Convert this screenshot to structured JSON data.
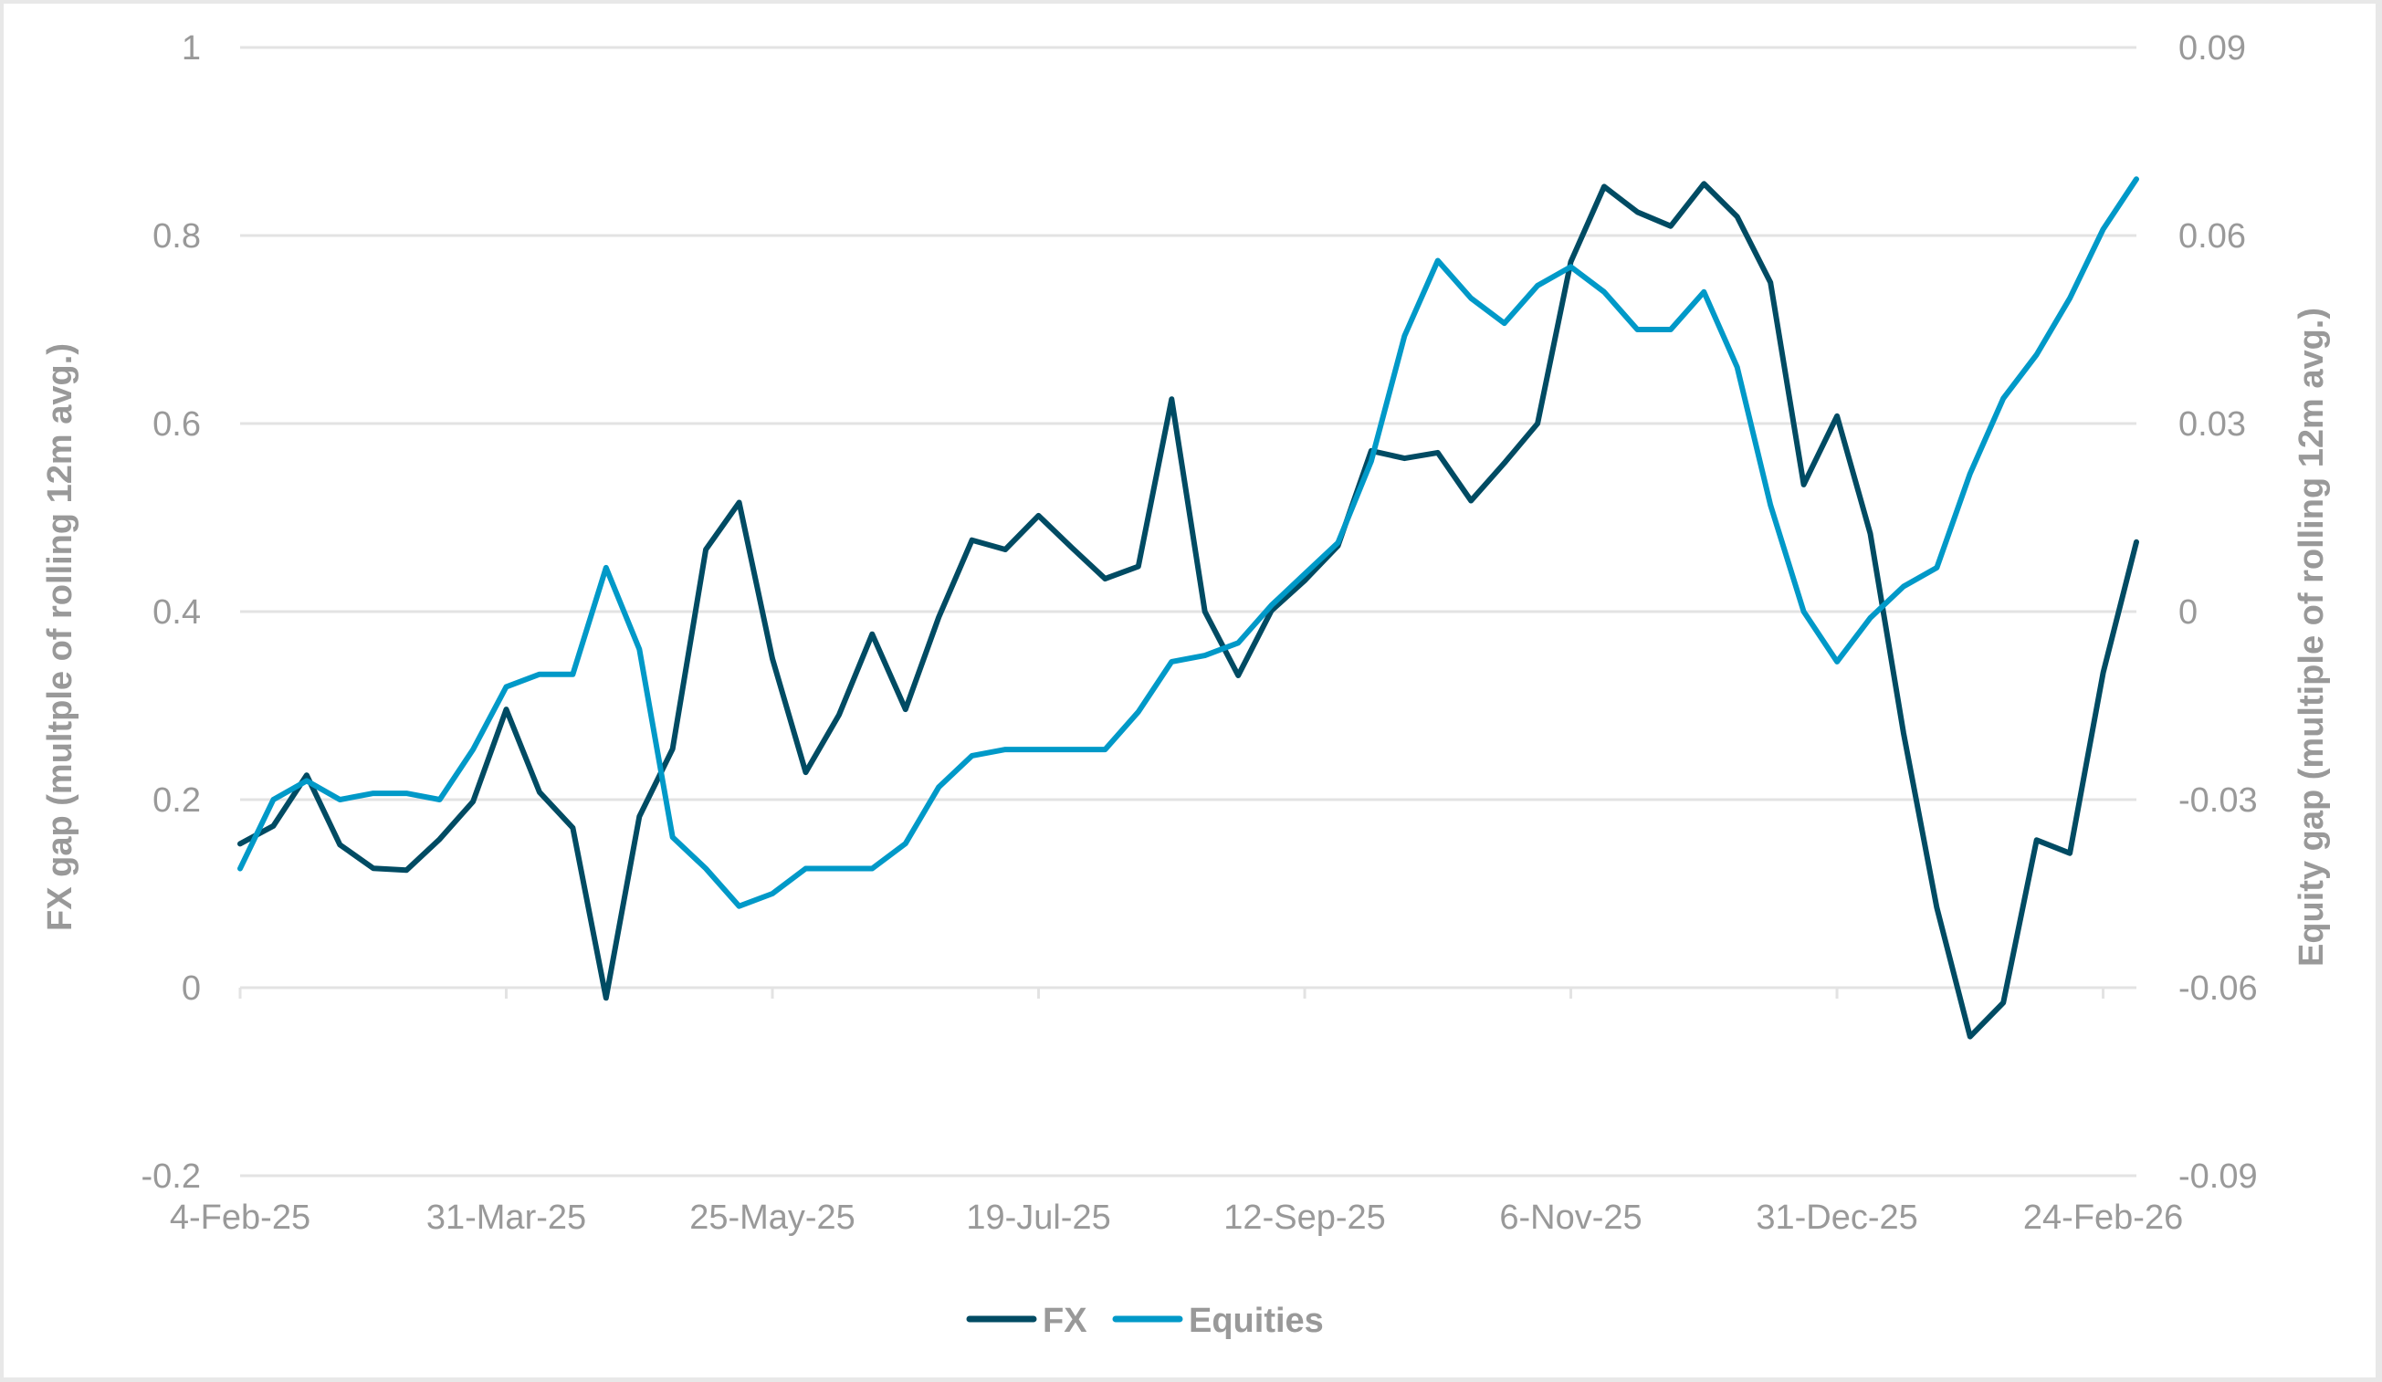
{
  "chart_data": {
    "type": "line",
    "title": "",
    "xlabel": "",
    "ylabel": "FX gap (multple of rolling 12m avg.)",
    "y2label": "Equity gap (multiple of rolling 12m avg.)",
    "ylim": [
      -0.2,
      1
    ],
    "y2lim": [
      -0.09,
      0.09
    ],
    "yticks": [
      "1",
      "0.8",
      "0.6",
      "0.4",
      "0.2",
      "0",
      "-0.2"
    ],
    "y2ticks": [
      "0.09",
      "0.06",
      "0.03",
      "0",
      "-0.03",
      "-0.06",
      "-0.09"
    ],
    "xticks": [
      "4-Feb-25",
      "31-Mar-25",
      "25-May-25",
      "19-Jul-25",
      "12-Sep-25",
      "6-Nov-25",
      "31-Dec-25",
      "24-Feb-26"
    ],
    "grid": true,
    "legend_position": "bottom",
    "series": [
      {
        "name": "FX",
        "axis": "left",
        "color": "#004b63",
        "values": [
          0.153,
          0.172,
          0.226,
          0.152,
          0.127,
          0.125,
          0.158,
          0.198,
          0.296,
          0.208,
          0.17,
          -0.011,
          0.182,
          0.254,
          0.466,
          0.516,
          0.35,
          0.229,
          0.29,
          0.376,
          0.296,
          0.394,
          0.476,
          0.466,
          0.502,
          0.468,
          0.435,
          0.448,
          0.626,
          0.4,
          0.332,
          0.401,
          0.433,
          0.47,
          0.571,
          0.563,
          0.569,
          0.518,
          0.558,
          0.6,
          0.772,
          0.852,
          0.825,
          0.81,
          0.855,
          0.82,
          0.75,
          0.535,
          0.608,
          0.483,
          0.271,
          0.085,
          -0.052,
          -0.016,
          0.157,
          0.143,
          0.335,
          0.474
        ]
      },
      {
        "name": "Equities",
        "axis": "right",
        "color": "#0099c8",
        "values": [
          -0.041,
          -0.03,
          -0.027,
          -0.03,
          -0.029,
          -0.029,
          -0.03,
          -0.022,
          -0.012,
          -0.01,
          -0.01,
          0.007,
          -0.006,
          -0.036,
          -0.041,
          -0.047,
          -0.045,
          -0.041,
          -0.041,
          -0.041,
          -0.037,
          -0.028,
          -0.023,
          -0.022,
          -0.022,
          -0.022,
          -0.022,
          -0.016,
          -0.008,
          -0.007,
          -0.005,
          0.001,
          0.006,
          0.011,
          0.024,
          0.044,
          0.056,
          0.05,
          0.046,
          0.052,
          0.055,
          0.051,
          0.045,
          0.045,
          0.051,
          0.039,
          0.017,
          0.0,
          -0.008,
          -0.001,
          0.004,
          0.007,
          0.022,
          0.034,
          0.041,
          0.05,
          0.061,
          0.069
        ]
      }
    ]
  },
  "legend": {
    "items": [
      {
        "label": "FX",
        "color": "#004b63"
      },
      {
        "label": "Equities",
        "color": "#0099c8"
      }
    ]
  },
  "colors": {
    "grid": "#e3e3e3",
    "text": "#999999",
    "fx": "#004b63",
    "equities": "#0099c8"
  }
}
